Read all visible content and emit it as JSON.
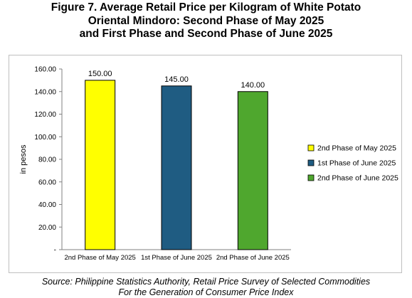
{
  "title": {
    "line1": "Figure 7. Average Retail Price per Kilogram of White Potato",
    "line2": "Oriental Mindoro: Second Phase of May 2025",
    "line3": "and First Phase and Second Phase of June 2025"
  },
  "source": {
    "line1": "Source: Philippine Statistics Authority, Retail Price Survey of Selected Commodities",
    "line2": "For the Generation of Consumer Price Index"
  },
  "chart_data": {
    "type": "bar",
    "categories": [
      "2nd Phase of May 2025",
      "1st Phase of June 2025",
      "2nd Phase of June 2025"
    ],
    "values": [
      150.0,
      145.0,
      140.0
    ],
    "data_labels": [
      "150.00",
      "145.00",
      "140.00"
    ],
    "colors": [
      "#ffff00",
      "#1f5c82",
      "#4fa72e"
    ],
    "ylabel": "in pesos",
    "ylim": [
      0,
      160
    ],
    "yticks": [
      0,
      20,
      40,
      60,
      80,
      100,
      120,
      140,
      160
    ],
    "ytick_labels": [
      "-",
      "20.00",
      "40.00",
      "60.00",
      "80.00",
      "100.00",
      "120.00",
      "140.00",
      "160.00"
    ],
    "grid": false,
    "legend_position": "right",
    "legend": [
      "2nd Phase of May 2025",
      "1st Phase of June 2025",
      "2nd Phase of June 2025"
    ]
  }
}
